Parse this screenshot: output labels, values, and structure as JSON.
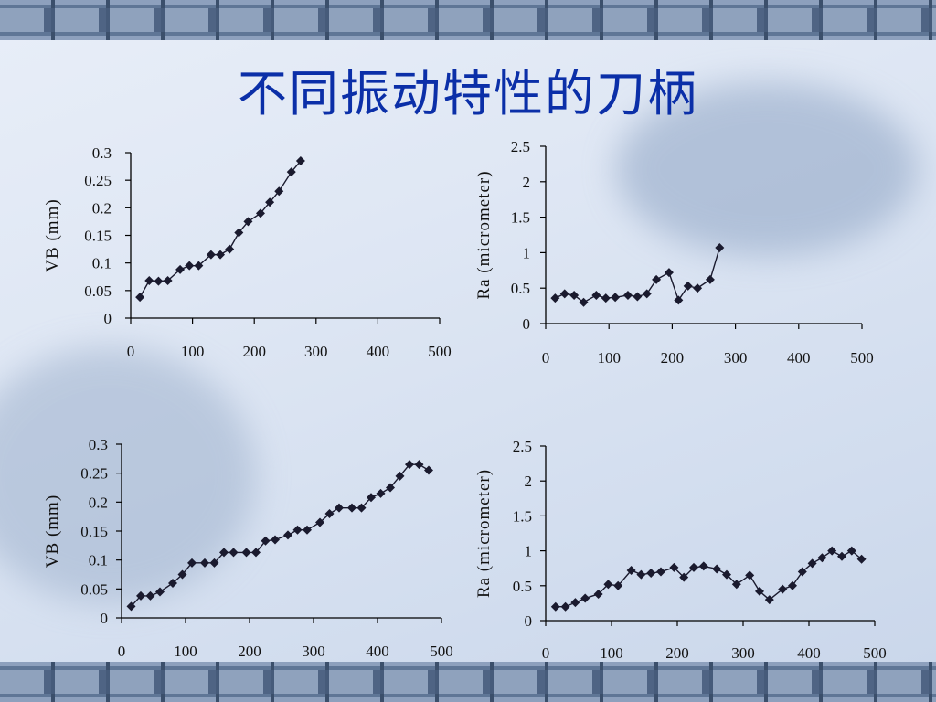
{
  "slide": {
    "title": "不同振动特性的刀柄"
  },
  "colors": {
    "title": "#0b2fa8",
    "series": "#1a1a2e",
    "axis": "#000000"
  },
  "chart_data": [
    {
      "type": "line",
      "ylabel": "VB (mm)",
      "xlim": [
        0,
        500
      ],
      "ylim": [
        0,
        0.3
      ],
      "xticks": [
        "0",
        "100",
        "200",
        "300",
        "400",
        "500"
      ],
      "yticks": [
        "0",
        "0.05",
        "0.1",
        "0.15",
        "0.2",
        "0.25",
        "0.3"
      ],
      "x": [
        15,
        30,
        45,
        60,
        80,
        95,
        110,
        130,
        145,
        160,
        175,
        190,
        210,
        225,
        240,
        260,
        275
      ],
      "values": [
        0.038,
        0.068,
        0.067,
        0.068,
        0.088,
        0.095,
        0.095,
        0.115,
        0.115,
        0.125,
        0.155,
        0.175,
        0.19,
        0.21,
        0.23,
        0.265,
        0.285
      ],
      "marker": "diamond"
    },
    {
      "type": "line",
      "ylabel": "Ra (micrometer)",
      "xlim": [
        0,
        500
      ],
      "ylim": [
        0,
        2.5
      ],
      "xticks": [
        "0",
        "100",
        "200",
        "300",
        "400",
        "500"
      ],
      "yticks": [
        "0",
        "0.5",
        "1",
        "1.5",
        "2",
        "2.5"
      ],
      "x": [
        15,
        30,
        45,
        60,
        80,
        95,
        110,
        130,
        145,
        160,
        175,
        195,
        210,
        225,
        240,
        260,
        275
      ],
      "values": [
        0.36,
        0.42,
        0.4,
        0.3,
        0.4,
        0.36,
        0.37,
        0.4,
        0.38,
        0.42,
        0.62,
        0.72,
        0.33,
        0.53,
        0.5,
        0.62,
        1.07
      ],
      "marker": "diamond"
    },
    {
      "type": "line",
      "ylabel": "VB (mm)",
      "xlim": [
        0,
        500
      ],
      "ylim": [
        0,
        0.3
      ],
      "xticks": [
        "0",
        "100",
        "200",
        "300",
        "400",
        "500"
      ],
      "yticks": [
        "0",
        "0.05",
        "0.1",
        "0.15",
        "0.2",
        "0.25",
        "0.3"
      ],
      "x": [
        15,
        30,
        45,
        60,
        80,
        95,
        110,
        130,
        145,
        160,
        175,
        195,
        210,
        225,
        240,
        260,
        275,
        290,
        310,
        325,
        340,
        360,
        375,
        390,
        405,
        420,
        435,
        450,
        465,
        480
      ],
      "values": [
        0.02,
        0.038,
        0.038,
        0.045,
        0.06,
        0.075,
        0.095,
        0.095,
        0.095,
        0.113,
        0.113,
        0.113,
        0.113,
        0.133,
        0.135,
        0.143,
        0.152,
        0.152,
        0.165,
        0.18,
        0.19,
        0.19,
        0.19,
        0.208,
        0.215,
        0.225,
        0.245,
        0.265,
        0.265,
        0.255
      ],
      "marker": "diamond"
    },
    {
      "type": "line",
      "ylabel": "Ra (micrometer)",
      "xlim": [
        0,
        500
      ],
      "ylim": [
        0,
        2.5
      ],
      "xticks": [
        "0",
        "100",
        "200",
        "300",
        "400",
        "500"
      ],
      "yticks": [
        "0",
        "0.5",
        "1",
        "1.5",
        "2",
        "2.5"
      ],
      "x": [
        15,
        30,
        45,
        60,
        80,
        95,
        110,
        130,
        145,
        160,
        175,
        195,
        210,
        225,
        240,
        260,
        275,
        290,
        310,
        325,
        340,
        360,
        375,
        390,
        405,
        420,
        435,
        450,
        465,
        480
      ],
      "values": [
        0.2,
        0.2,
        0.26,
        0.32,
        0.38,
        0.52,
        0.5,
        0.72,
        0.66,
        0.68,
        0.7,
        0.76,
        0.62,
        0.76,
        0.78,
        0.74,
        0.66,
        0.52,
        0.65,
        0.42,
        0.3,
        0.45,
        0.5,
        0.7,
        0.82,
        0.9,
        1.0,
        0.92,
        1.0,
        0.88
      ],
      "marker": "diamond"
    }
  ]
}
